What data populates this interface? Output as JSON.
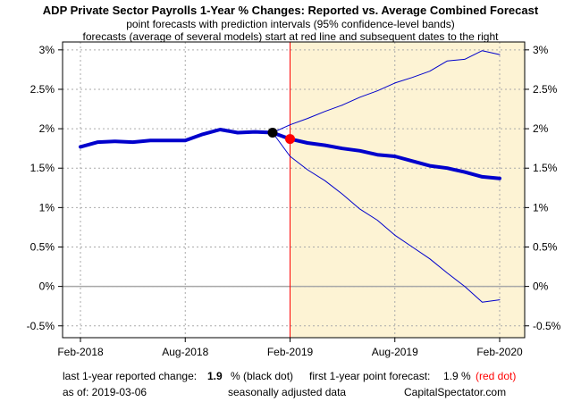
{
  "chart_data": {
    "type": "line",
    "title": "ADP Private Sector Payrolls 1-Year % Changes: Reported vs. Average Combined Forecast",
    "subtitle_1": "point forecasts with prediction intervals (95% confidence-level bands)",
    "subtitle_2": "forecasts (average of several models) start at red line and subsequent dates to the right",
    "x_tick_labels": [
      "Feb-2018",
      "Aug-2018",
      "Feb-2019",
      "Aug-2019",
      "Feb-2020"
    ],
    "y_tick_labels": [
      "3%",
      "2.5%",
      "2%",
      "1.5%",
      "1%",
      "0.5%",
      "0%",
      "-0.5%"
    ],
    "ylim": [
      -0.65,
      3.1
    ],
    "grid": true,
    "forecast_start": "2019-02",
    "zero_line": true,
    "series": [
      {
        "role": "reported",
        "color": "#0000cc",
        "x": [
          "2018-02",
          "2018-03",
          "2018-04",
          "2018-05",
          "2018-06",
          "2018-07",
          "2018-08",
          "2018-09",
          "2018-10",
          "2018-11",
          "2018-12",
          "2019-01"
        ],
        "values": [
          1.77,
          1.83,
          1.84,
          1.83,
          1.85,
          1.85,
          1.85,
          1.93,
          1.99,
          1.95,
          1.96,
          1.95
        ]
      },
      {
        "role": "forecast",
        "color": "#0000cc",
        "x": [
          "2019-01",
          "2019-02",
          "2019-03",
          "2019-04",
          "2019-05",
          "2019-06",
          "2019-07",
          "2019-08",
          "2019-09",
          "2019-10",
          "2019-11",
          "2019-12",
          "2020-01",
          "2020-02"
        ],
        "values": [
          1.95,
          1.87,
          1.82,
          1.79,
          1.75,
          1.72,
          1.67,
          1.65,
          1.59,
          1.53,
          1.5,
          1.45,
          1.39,
          1.37
        ]
      },
      {
        "role": "upper band",
        "color": "#0000cc",
        "x": [
          "2019-01",
          "2019-02",
          "2019-03",
          "2019-04",
          "2019-05",
          "2019-06",
          "2019-07",
          "2019-08",
          "2019-09",
          "2019-10",
          "2019-11",
          "2019-12",
          "2020-01",
          "2020-02"
        ],
        "values": [
          1.95,
          2.05,
          2.13,
          2.22,
          2.3,
          2.4,
          2.48,
          2.58,
          2.65,
          2.73,
          2.86,
          2.88,
          2.99,
          2.94
        ]
      },
      {
        "role": "lower band",
        "color": "#0000cc",
        "x": [
          "2019-01",
          "2019-02",
          "2019-03",
          "2019-04",
          "2019-05",
          "2019-06",
          "2019-07",
          "2019-08",
          "2019-09",
          "2019-10",
          "2019-11",
          "2019-12",
          "2020-01",
          "2020-02"
        ],
        "values": [
          1.95,
          1.65,
          1.48,
          1.34,
          1.17,
          0.98,
          0.84,
          0.65,
          0.5,
          0.35,
          0.17,
          0.0,
          -0.2,
          -0.17
        ]
      }
    ],
    "markers": [
      {
        "label": "last reported",
        "x": "2019-01",
        "value": 1.95,
        "color": "#000000"
      },
      {
        "label": "first forecast",
        "x": "2019-02",
        "value": 1.87,
        "color": "#ff0000"
      }
    ],
    "colors": {
      "forecast_shade": "#fdf3d4",
      "forecast_line": "#ff0000",
      "series": "#0000cc",
      "grid": "#aaaaaa",
      "zero_line": "#a8a8a8"
    }
  },
  "footer": {
    "last_reported_label": "last 1-year reported change:",
    "last_reported_value": "1.9",
    "last_reported_unit": "% (black dot)",
    "first_forecast_label": "first 1-year point forecast:",
    "first_forecast_value": "1.9 %",
    "first_forecast_note": "(red dot)",
    "as_of": "as of:  2019-03-06",
    "seasonal": "seasonally adjusted data",
    "source": "CapitalSpectator.com"
  }
}
